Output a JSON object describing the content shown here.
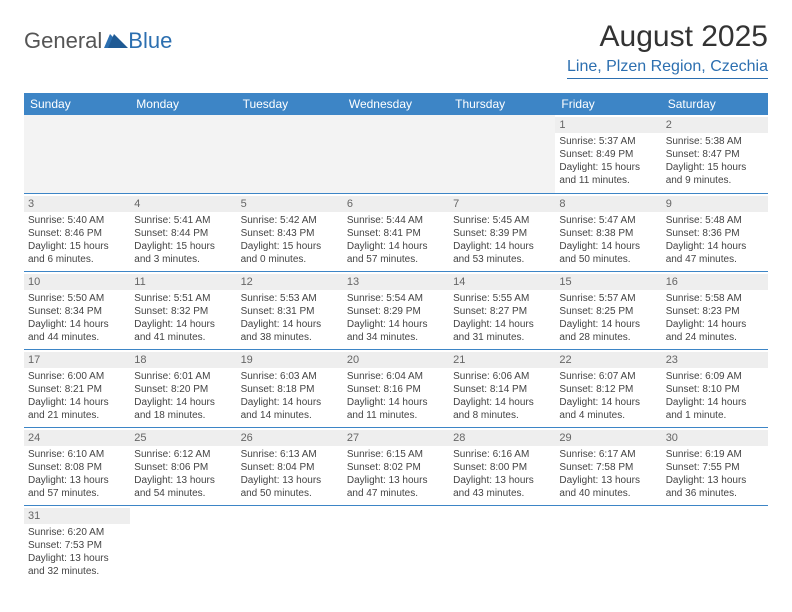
{
  "logo": {
    "text_general": "General",
    "text_blue": "Blue"
  },
  "title": "August 2025",
  "location": "Line, Plzen Region, Czechia",
  "colors": {
    "header_bg": "#3d85c6",
    "header_text": "#ffffff",
    "accent_blue": "#2c6fb0",
    "daynum_bg": "#eeeeee",
    "body_text": "#444444",
    "border": "#3d85c6"
  },
  "fonts": {
    "title_size_pt": 22,
    "location_size_pt": 12,
    "weekday_size_pt": 9,
    "cell_size_pt": 7.5
  },
  "weekdays": [
    "Sunday",
    "Monday",
    "Tuesday",
    "Wednesday",
    "Thursday",
    "Friday",
    "Saturday"
  ],
  "weeks": [
    [
      null,
      null,
      null,
      null,
      null,
      {
        "day": "1",
        "sunrise": "Sunrise: 5:37 AM",
        "sunset": "Sunset: 8:49 PM",
        "daylight": "Daylight: 15 hours and 11 minutes."
      },
      {
        "day": "2",
        "sunrise": "Sunrise: 5:38 AM",
        "sunset": "Sunset: 8:47 PM",
        "daylight": "Daylight: 15 hours and 9 minutes."
      }
    ],
    [
      {
        "day": "3",
        "sunrise": "Sunrise: 5:40 AM",
        "sunset": "Sunset: 8:46 PM",
        "daylight": "Daylight: 15 hours and 6 minutes."
      },
      {
        "day": "4",
        "sunrise": "Sunrise: 5:41 AM",
        "sunset": "Sunset: 8:44 PM",
        "daylight": "Daylight: 15 hours and 3 minutes."
      },
      {
        "day": "5",
        "sunrise": "Sunrise: 5:42 AM",
        "sunset": "Sunset: 8:43 PM",
        "daylight": "Daylight: 15 hours and 0 minutes."
      },
      {
        "day": "6",
        "sunrise": "Sunrise: 5:44 AM",
        "sunset": "Sunset: 8:41 PM",
        "daylight": "Daylight: 14 hours and 57 minutes."
      },
      {
        "day": "7",
        "sunrise": "Sunrise: 5:45 AM",
        "sunset": "Sunset: 8:39 PM",
        "daylight": "Daylight: 14 hours and 53 minutes."
      },
      {
        "day": "8",
        "sunrise": "Sunrise: 5:47 AM",
        "sunset": "Sunset: 8:38 PM",
        "daylight": "Daylight: 14 hours and 50 minutes."
      },
      {
        "day": "9",
        "sunrise": "Sunrise: 5:48 AM",
        "sunset": "Sunset: 8:36 PM",
        "daylight": "Daylight: 14 hours and 47 minutes."
      }
    ],
    [
      {
        "day": "10",
        "sunrise": "Sunrise: 5:50 AM",
        "sunset": "Sunset: 8:34 PM",
        "daylight": "Daylight: 14 hours and 44 minutes."
      },
      {
        "day": "11",
        "sunrise": "Sunrise: 5:51 AM",
        "sunset": "Sunset: 8:32 PM",
        "daylight": "Daylight: 14 hours and 41 minutes."
      },
      {
        "day": "12",
        "sunrise": "Sunrise: 5:53 AM",
        "sunset": "Sunset: 8:31 PM",
        "daylight": "Daylight: 14 hours and 38 minutes."
      },
      {
        "day": "13",
        "sunrise": "Sunrise: 5:54 AM",
        "sunset": "Sunset: 8:29 PM",
        "daylight": "Daylight: 14 hours and 34 minutes."
      },
      {
        "day": "14",
        "sunrise": "Sunrise: 5:55 AM",
        "sunset": "Sunset: 8:27 PM",
        "daylight": "Daylight: 14 hours and 31 minutes."
      },
      {
        "day": "15",
        "sunrise": "Sunrise: 5:57 AM",
        "sunset": "Sunset: 8:25 PM",
        "daylight": "Daylight: 14 hours and 28 minutes."
      },
      {
        "day": "16",
        "sunrise": "Sunrise: 5:58 AM",
        "sunset": "Sunset: 8:23 PM",
        "daylight": "Daylight: 14 hours and 24 minutes."
      }
    ],
    [
      {
        "day": "17",
        "sunrise": "Sunrise: 6:00 AM",
        "sunset": "Sunset: 8:21 PM",
        "daylight": "Daylight: 14 hours and 21 minutes."
      },
      {
        "day": "18",
        "sunrise": "Sunrise: 6:01 AM",
        "sunset": "Sunset: 8:20 PM",
        "daylight": "Daylight: 14 hours and 18 minutes."
      },
      {
        "day": "19",
        "sunrise": "Sunrise: 6:03 AM",
        "sunset": "Sunset: 8:18 PM",
        "daylight": "Daylight: 14 hours and 14 minutes."
      },
      {
        "day": "20",
        "sunrise": "Sunrise: 6:04 AM",
        "sunset": "Sunset: 8:16 PM",
        "daylight": "Daylight: 14 hours and 11 minutes."
      },
      {
        "day": "21",
        "sunrise": "Sunrise: 6:06 AM",
        "sunset": "Sunset: 8:14 PM",
        "daylight": "Daylight: 14 hours and 8 minutes."
      },
      {
        "day": "22",
        "sunrise": "Sunrise: 6:07 AM",
        "sunset": "Sunset: 8:12 PM",
        "daylight": "Daylight: 14 hours and 4 minutes."
      },
      {
        "day": "23",
        "sunrise": "Sunrise: 6:09 AM",
        "sunset": "Sunset: 8:10 PM",
        "daylight": "Daylight: 14 hours and 1 minute."
      }
    ],
    [
      {
        "day": "24",
        "sunrise": "Sunrise: 6:10 AM",
        "sunset": "Sunset: 8:08 PM",
        "daylight": "Daylight: 13 hours and 57 minutes."
      },
      {
        "day": "25",
        "sunrise": "Sunrise: 6:12 AM",
        "sunset": "Sunset: 8:06 PM",
        "daylight": "Daylight: 13 hours and 54 minutes."
      },
      {
        "day": "26",
        "sunrise": "Sunrise: 6:13 AM",
        "sunset": "Sunset: 8:04 PM",
        "daylight": "Daylight: 13 hours and 50 minutes."
      },
      {
        "day": "27",
        "sunrise": "Sunrise: 6:15 AM",
        "sunset": "Sunset: 8:02 PM",
        "daylight": "Daylight: 13 hours and 47 minutes."
      },
      {
        "day": "28",
        "sunrise": "Sunrise: 6:16 AM",
        "sunset": "Sunset: 8:00 PM",
        "daylight": "Daylight: 13 hours and 43 minutes."
      },
      {
        "day": "29",
        "sunrise": "Sunrise: 6:17 AM",
        "sunset": "Sunset: 7:58 PM",
        "daylight": "Daylight: 13 hours and 40 minutes."
      },
      {
        "day": "30",
        "sunrise": "Sunrise: 6:19 AM",
        "sunset": "Sunset: 7:55 PM",
        "daylight": "Daylight: 13 hours and 36 minutes."
      }
    ],
    [
      {
        "day": "31",
        "sunrise": "Sunrise: 6:20 AM",
        "sunset": "Sunset: 7:53 PM",
        "daylight": "Daylight: 13 hours and 32 minutes."
      },
      null,
      null,
      null,
      null,
      null,
      null
    ]
  ]
}
